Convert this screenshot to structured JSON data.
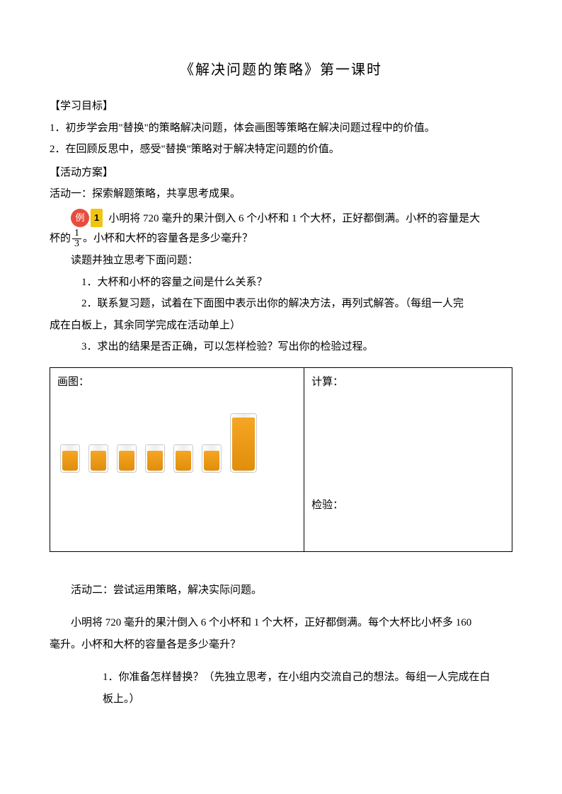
{
  "title": "《解决问题的策略》第一课时",
  "goals_head": "【学习目标】",
  "goal1": "1．初步学会用\"替换\"的策略解决问题，体会画图等策略在解决问题过程中的价值。",
  "goal2": "2．在回顾反思中，感受\"替换\"策略对于解决特定问题的价值。",
  "plan_head": "【活动方案】",
  "act1_title": "活动一：探索解题策略，共享思考成果。",
  "example_badge": "例",
  "example_num": "1",
  "example_line1": "小明将 720 毫升的果汁倒入 6 个小杯和 1 个大杯，正好都倒满。小杯的容量是大",
  "example_line2_pre": "杯的",
  "example_frac_num": "1",
  "example_frac_den": "3",
  "example_line2_post": "。小杯和大杯的容量各是多少毫升？",
  "think_intro": "读题并独立思考下面问题：",
  "q1": "1．大杯和小杯的容量之间是什么关系？",
  "q2a": "2．联系复习题，试着在下面图中表示出你的解决方法，再列式解答。（每组一人完",
  "q2b": "成在白板上，其余同学完成在活动单上）",
  "q3": "3．求出的结果是否正确，可以怎样检验？写出你的检验过程。",
  "table": {
    "left_label": "画图：",
    "right_label": "计算：",
    "verify_label": "检验：",
    "small_cup_count": 6,
    "colors": {
      "juice_top": "#f5a623",
      "juice_bottom": "#e08e0b",
      "glass_border": "rgba(180,180,180,0.7)"
    }
  },
  "act2_title": "活动二：尝试运用策略，解决实际问题。",
  "act2_p1": "小明将 720 毫升的果汁倒入 6 个小杯和 1 个大杯，正好都倒满。每个大杯比小杯多 160",
  "act2_p2": "毫升。小杯和大杯的容量各是多少毫升？",
  "act2_q1a": "1．你准备怎样替换？（先独立思考，在小组内交流自己的想法。每组一人完成在白",
  "act2_q1b": "板上。）"
}
